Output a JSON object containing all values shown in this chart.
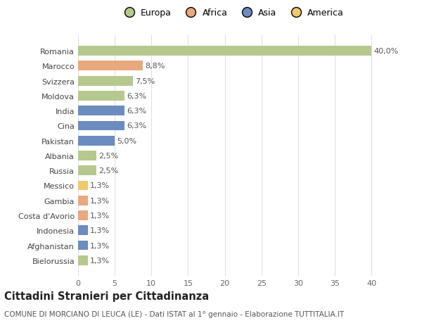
{
  "countries": [
    "Romania",
    "Marocco",
    "Svizzera",
    "Moldova",
    "India",
    "Cina",
    "Pakistan",
    "Albania",
    "Russia",
    "Messico",
    "Gambia",
    "Costa d'Avorio",
    "Indonesia",
    "Afghanistan",
    "Bielorussia"
  ],
  "values": [
    40.0,
    8.8,
    7.5,
    6.3,
    6.3,
    6.3,
    5.0,
    2.5,
    2.5,
    1.3,
    1.3,
    1.3,
    1.3,
    1.3,
    1.3
  ],
  "labels": [
    "40,0%",
    "8,8%",
    "7,5%",
    "6,3%",
    "6,3%",
    "6,3%",
    "5,0%",
    "2,5%",
    "2,5%",
    "1,3%",
    "1,3%",
    "1,3%",
    "1,3%",
    "1,3%",
    "1,3%"
  ],
  "continents": [
    "Europa",
    "Africa",
    "Europa",
    "Europa",
    "Asia",
    "Asia",
    "Asia",
    "Europa",
    "Europa",
    "America",
    "Africa",
    "Africa",
    "Asia",
    "Asia",
    "Europa"
  ],
  "colors": {
    "Europa": "#b5c98e",
    "Africa": "#e8a97e",
    "Asia": "#6b8cbf",
    "America": "#f0c96e"
  },
  "title": "Cittadini Stranieri per Cittadinanza",
  "subtitle": "COMUNE DI MORCIANO DI LEUCA (LE) - Dati ISTAT al 1° gennaio - Elaborazione TUTTITALIA.IT",
  "xlim": [
    0,
    42
  ],
  "xticks": [
    0,
    5,
    10,
    15,
    20,
    25,
    30,
    35,
    40
  ],
  "background_color": "#ffffff",
  "grid_color": "#e0e0e0",
  "bar_height": 0.65,
  "label_fontsize": 8,
  "tick_fontsize": 8,
  "ylabel_fontsize": 8,
  "title_fontsize": 10.5,
  "subtitle_fontsize": 7.5,
  "legend_fontsize": 9
}
